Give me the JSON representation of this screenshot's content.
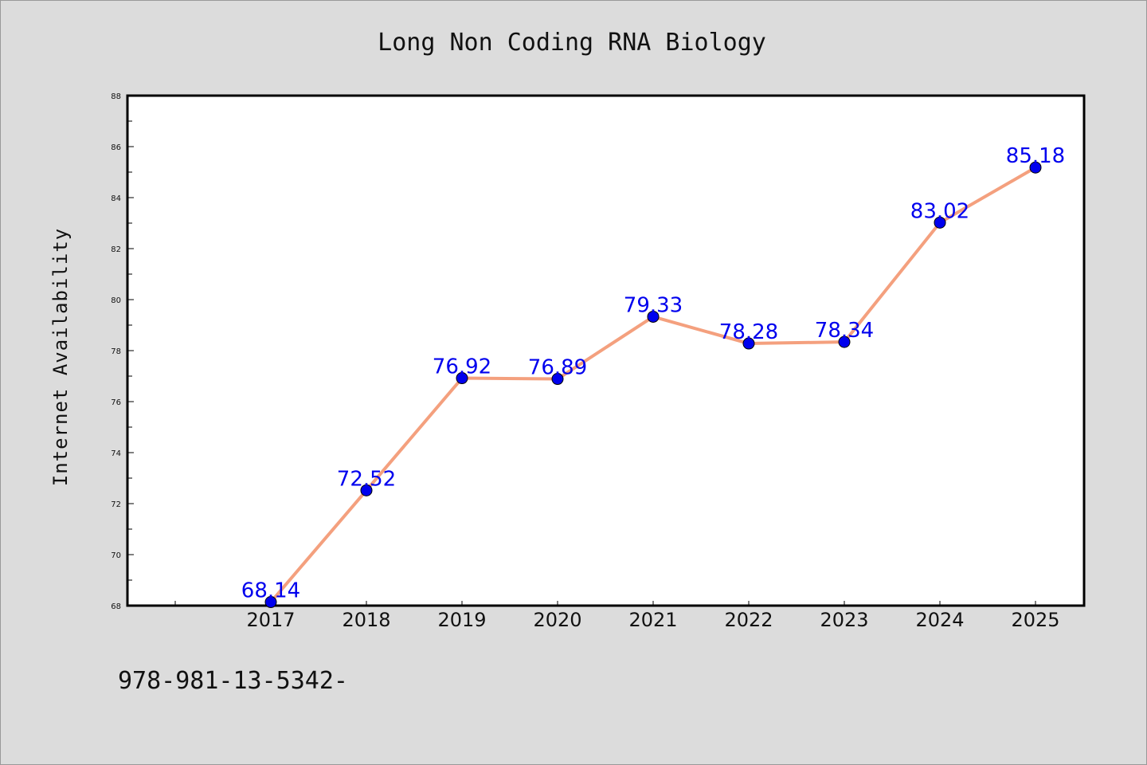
{
  "chart_data": {
    "type": "line",
    "title": "Long Non Coding RNA Biology",
    "xlabel": "",
    "ylabel": "Internet Availability",
    "categories": [
      "2017",
      "2018",
      "2019",
      "2020",
      "2021",
      "2022",
      "2023",
      "2024",
      "2025"
    ],
    "series": [
      {
        "values": [
          68.14,
          72.52,
          76.92,
          76.89,
          79.33,
          78.28,
          78.34,
          83.02,
          85.18
        ],
        "data_labels": [
          "68.14",
          "72.52",
          "76.92",
          "76.89",
          "79.33",
          "78.28",
          "78.34",
          "83.02",
          "85.18"
        ]
      }
    ],
    "ylim": [
      68,
      88
    ],
    "yticks": [
      "68",
      "70",
      "72",
      "74",
      "76",
      "78",
      "80",
      "82",
      "84",
      "86",
      "88"
    ],
    "grid": false,
    "legend": "none",
    "colors": {
      "line": "#f4a07e",
      "marker": "#0000ee",
      "label": "#0000ee",
      "plot_bg": "#ffffff",
      "page_bg": "#dcdcdc"
    }
  },
  "footer_text": "978-981-13-5342-"
}
